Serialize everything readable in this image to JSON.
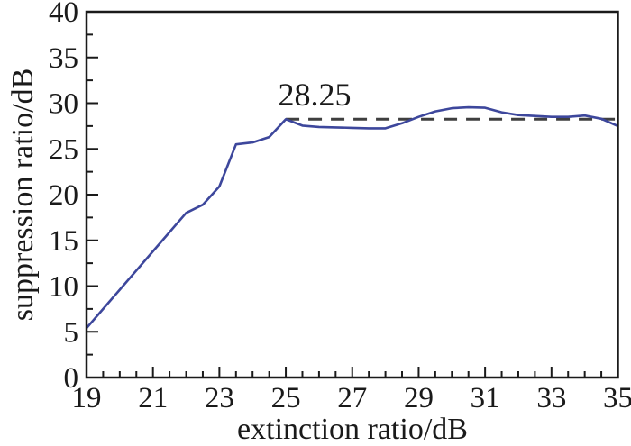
{
  "chart_data": {
    "type": "line",
    "title": "",
    "xlabel": "extinction ratio/dB",
    "ylabel": "suppression ratio/dB",
    "xlim": [
      19,
      35
    ],
    "ylim": [
      0,
      40
    ],
    "x_major_ticks": [
      19,
      21,
      23,
      25,
      27,
      29,
      31,
      33,
      35
    ],
    "x_minor_step": 0.5,
    "y_major_ticks": [
      0,
      5,
      10,
      15,
      20,
      25,
      30,
      35,
      40
    ],
    "y_minor_step": 2.5,
    "grid": false,
    "legend": false,
    "series": [
      {
        "name": "suppression ratio",
        "color": "#3d479c",
        "x": [
          19,
          19.5,
          20,
          20.5,
          21,
          21.5,
          22,
          22.5,
          23,
          23.5,
          24,
          24.5,
          25,
          25.5,
          26,
          26.5,
          27,
          27.5,
          28,
          28.5,
          29,
          29.5,
          30,
          30.5,
          31,
          31.5,
          32,
          32.5,
          33,
          33.5,
          34,
          34.5,
          35
        ],
        "y": [
          5.4,
          7.5,
          9.6,
          11.7,
          13.8,
          15.9,
          18.0,
          18.9,
          20.9,
          25.5,
          25.7,
          26.3,
          28.25,
          27.55,
          27.4,
          27.35,
          27.3,
          27.25,
          27.25,
          27.8,
          28.5,
          29.1,
          29.45,
          29.55,
          29.5,
          29.0,
          28.7,
          28.6,
          28.5,
          28.5,
          28.65,
          28.3,
          27.5
        ]
      }
    ],
    "reference_line": {
      "value": 28.25,
      "x_start": 25,
      "x_end": 35,
      "style": "dashed",
      "color": "#3f3f3f",
      "label": "28.25"
    }
  },
  "style": {
    "axis_color": "#1a1a1a",
    "background": "#ffffff"
  }
}
